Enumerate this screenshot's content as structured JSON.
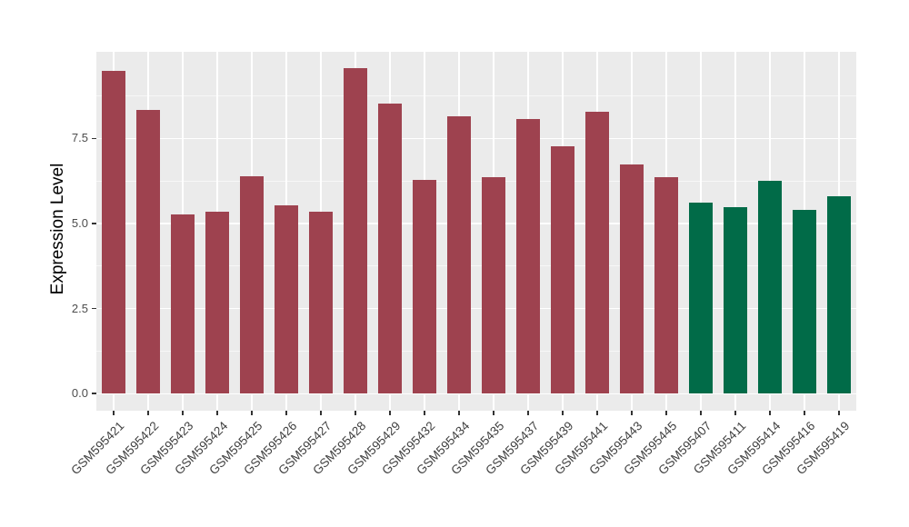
{
  "chart_data": {
    "type": "bar",
    "title": "",
    "xlabel": "",
    "ylabel": "Expression Level",
    "categories": [
      "GSM595421",
      "GSM595422",
      "GSM595423",
      "GSM595424",
      "GSM595425",
      "GSM595426",
      "GSM595427",
      "GSM595428",
      "GSM595429",
      "GSM595432",
      "GSM595434",
      "GSM595435",
      "GSM595437",
      "GSM595439",
      "GSM595441",
      "GSM595443",
      "GSM595445",
      "GSM595407",
      "GSM595411",
      "GSM595414",
      "GSM595416",
      "GSM595419"
    ],
    "values": [
      9.5,
      8.33,
      5.28,
      5.36,
      6.39,
      5.54,
      5.34,
      9.58,
      8.52,
      6.28,
      8.15,
      6.37,
      8.07,
      7.27,
      8.29,
      6.73,
      6.36,
      5.62,
      5.49,
      6.26,
      5.4,
      5.81
    ],
    "groups": [
      "red",
      "red",
      "red",
      "red",
      "red",
      "red",
      "red",
      "red",
      "red",
      "red",
      "red",
      "red",
      "red",
      "red",
      "red",
      "red",
      "red",
      "green",
      "green",
      "green",
      "green",
      "green"
    ],
    "group_colors": {
      "red": "#9E424F",
      "green": "#016B48"
    },
    "ytick_labels": [
      "0.0",
      "2.5",
      "5.0",
      "7.5"
    ],
    "yticks": [
      0,
      2.5,
      5,
      7.5
    ],
    "yticks_minor": [
      1.25,
      3.75,
      6.25,
      8.75
    ],
    "ylim": [
      -0.5,
      10.05
    ],
    "bar_width_fraction": 0.71,
    "grid": "on",
    "legend": "none",
    "panel_background": "#EBEBEB",
    "grid_color": "#FFFFFF"
  }
}
